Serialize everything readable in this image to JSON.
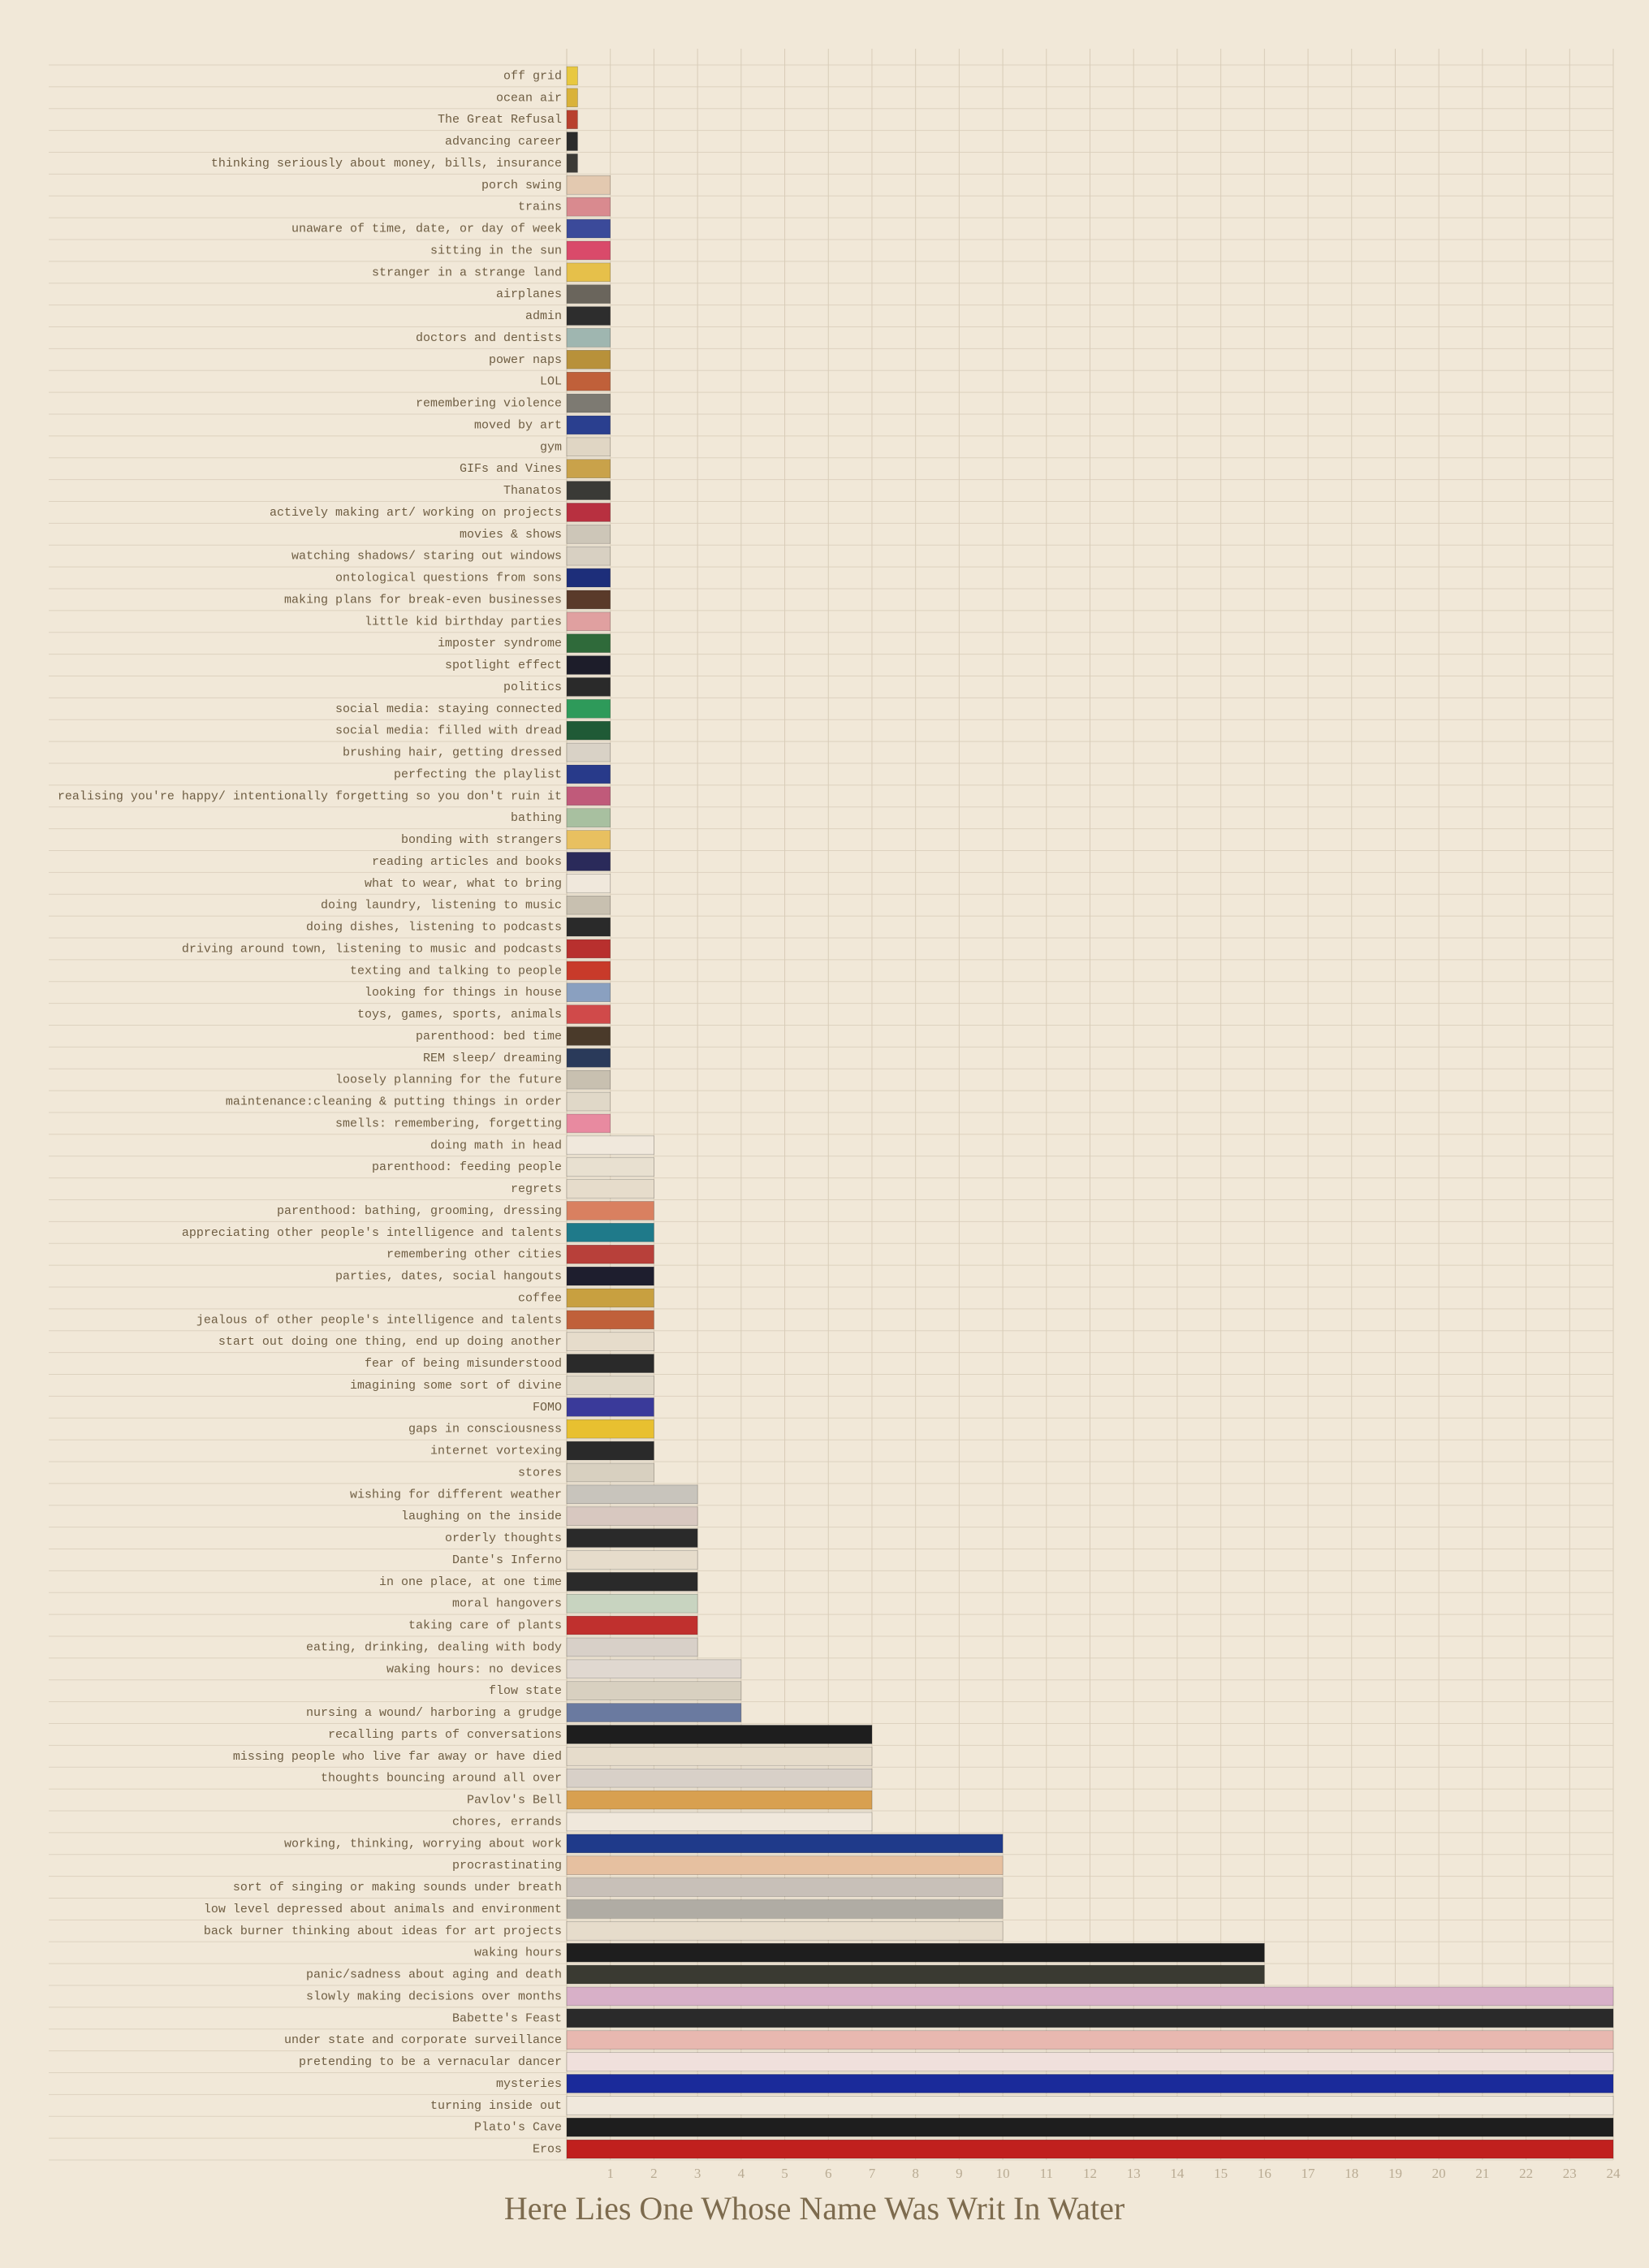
{
  "chart_data": {
    "type": "barh",
    "title": "Here Lies One Whose Name Was Writ In Water",
    "categories": [
      "off grid",
      "ocean air",
      "The Great Refusal",
      "advancing career",
      "thinking seriously about money, bills, insurance",
      "porch swing",
      "trains",
      "unaware of time, date, or day of week",
      "sitting in the sun",
      "stranger in a strange land",
      "airplanes",
      "admin",
      "doctors and dentists",
      "power naps",
      "LOL",
      "remembering violence",
      "moved by art",
      "gym",
      "GIFs and Vines",
      "Thanatos",
      "actively making art/ working on projects",
      "movies & shows",
      "watching shadows/ staring out windows",
      "ontological questions from sons",
      "making plans for break-even businesses",
      "little kid birthday parties",
      "imposter syndrome",
      "spotlight effect",
      "politics",
      "social media: staying connected",
      "social media: filled with dread",
      "brushing hair, getting dressed",
      "perfecting the playlist",
      "realising you're happy/ intentionally forgetting so you don't ruin it",
      "bathing",
      "bonding with strangers",
      "reading articles and books",
      "what to wear, what to bring",
      "doing laundry, listening to music",
      "doing dishes, listening to podcasts",
      "driving around town, listening to music and podcasts",
      "texting and talking to people",
      "looking for things in house",
      "toys, games, sports, animals",
      "parenthood: bed time",
      "REM sleep/ dreaming",
      "loosely planning for the future",
      "maintenance:cleaning & putting things in order",
      "smells: remembering, forgetting",
      "doing math in head",
      "parenthood: feeding people",
      "regrets",
      "parenthood: bathing, grooming, dressing",
      "appreciating other people's intelligence and talents",
      "remembering other cities",
      "parties, dates, social hangouts",
      "coffee",
      "jealous of other people's intelligence and talents",
      "start out doing one thing, end up doing another",
      "fear of being misunderstood",
      "imagining some sort of divine",
      "FOMO",
      "gaps in consciousness",
      "internet vortexing",
      "stores",
      "wishing for different weather",
      "laughing on the inside",
      "orderly thoughts",
      "Dante's Inferno",
      "in one place, at one time",
      "moral hangovers",
      "taking care of plants",
      "eating, drinking, dealing with body",
      "waking hours: no devices",
      "flow state",
      "nursing a wound/ harboring a grudge",
      "recalling parts of conversations",
      "missing people who live far away or have died",
      "thoughts bouncing around all over",
      "Pavlov's Bell",
      "chores, errands",
      "working, thinking, worrying about work",
      "procrastinating",
      "sort of singing or making sounds under breath",
      "low level depressed about animals and environment",
      "back burner thinking about ideas for art projects",
      "waking hours",
      "panic/sadness about aging and death",
      "slowly making decisions over months",
      "Babette's Feast",
      "under state and corporate surveillance",
      "pretending to be a vernacular dancer",
      "mysteries",
      "turning inside out",
      "Plato's Cave",
      "Eros"
    ],
    "values": [
      0.25,
      0.25,
      0.25,
      0.25,
      0.25,
      1,
      1,
      1,
      1,
      1,
      1,
      1,
      1,
      1,
      1,
      1,
      1,
      1,
      1,
      1,
      1,
      1,
      1,
      1,
      1,
      1,
      1,
      1,
      1,
      1,
      1,
      1,
      1,
      1,
      1,
      1,
      1,
      1,
      1,
      1,
      1,
      1,
      1,
      1,
      1,
      1,
      1,
      1,
      1,
      2,
      2,
      2,
      2,
      2,
      2,
      2,
      2,
      2,
      2,
      2,
      2,
      2,
      2,
      2,
      2,
      3,
      3,
      3,
      3,
      3,
      3,
      3,
      3,
      4,
      4,
      4,
      7,
      7,
      7,
      7,
      7,
      10,
      10,
      10,
      10,
      10,
      16,
      16,
      24,
      24,
      24,
      24,
      24,
      24,
      24,
      24
    ],
    "colors": [
      "#e8c840",
      "#d9b23a",
      "#b8402e",
      "#2b2b2b",
      "#3c3a36",
      "#e3c9b0",
      "#d98a8f",
      "#3b4a9a",
      "#d94a6a",
      "#e6c04a",
      "#6a655c",
      "#2d2d2d",
      "#9fb6b0",
      "#b8913a",
      "#c0603a",
      "#7d7a72",
      "#2a3f8f",
      "#e0d6c4",
      "#c9a24a",
      "#3a3a36",
      "#b83040",
      "#cdc6b8",
      "#d8d0c2",
      "#1d2e7a",
      "#5a3a2a",
      "#e0a0a0",
      "#2f6a3a",
      "#1d1d2a",
      "#2a2a2a",
      "#2e9a5a",
      "#1f5a36",
      "#d9d2c6",
      "#283a8a",
      "#c05a7a",
      "#a8c0a0",
      "#e8c060",
      "#2a2a5a",
      "#f0e8dc",
      "#c8c0b0",
      "#2a2a2a",
      "#b8302e",
      "#c83a2a",
      "#8aa0c0",
      "#d04a4a",
      "#4a3a2a",
      "#2a3a5a",
      "#c8c0b0",
      "#e0d8c8",
      "#e88aa0",
      "#f0e8dc",
      "#e8e0d0",
      "#e6dccb",
      "#d98060",
      "#1f7a8a",
      "#b8403a",
      "#1e1e2e",
      "#c8a040",
      "#c0603a",
      "#e6dccb",
      "#2a2a2a",
      "#e0d8c8",
      "#3a3a9a",
      "#e8c030",
      "#2a2a2a",
      "#d8d0c0",
      "#c8c4bc",
      "#d8c8c0",
      "#2a2a2a",
      "#e6dccb",
      "#2a2a2a",
      "#c8d4c0",
      "#c0302e",
      "#d8d0c8",
      "#e0d8d0",
      "#d8d0c0",
      "#6a7aa0",
      "#1e1e1e",
      "#e6dccb",
      "#d8d0c8",
      "#d8a050",
      "#f0e8dc",
      "#1f3a8a",
      "#e6c0a0",
      "#c8c0b8",
      "#b0aca4",
      "#e6dccb",
      "#1e1e1e",
      "#3a3a32",
      "#d8b0c8",
      "#2a2a2a",
      "#e8b8b0",
      "#f0e0dc",
      "#1a2a9a",
      "#f0e8dc",
      "#1e1e1e",
      "#c0201e"
    ],
    "xlim": [
      0,
      24
    ],
    "xticks": [
      1,
      2,
      3,
      4,
      5,
      6,
      7,
      8,
      9,
      10,
      11,
      12,
      13,
      14,
      15,
      16,
      17,
      18,
      19,
      20,
      21,
      22,
      23,
      24
    ],
    "grid": true
  }
}
